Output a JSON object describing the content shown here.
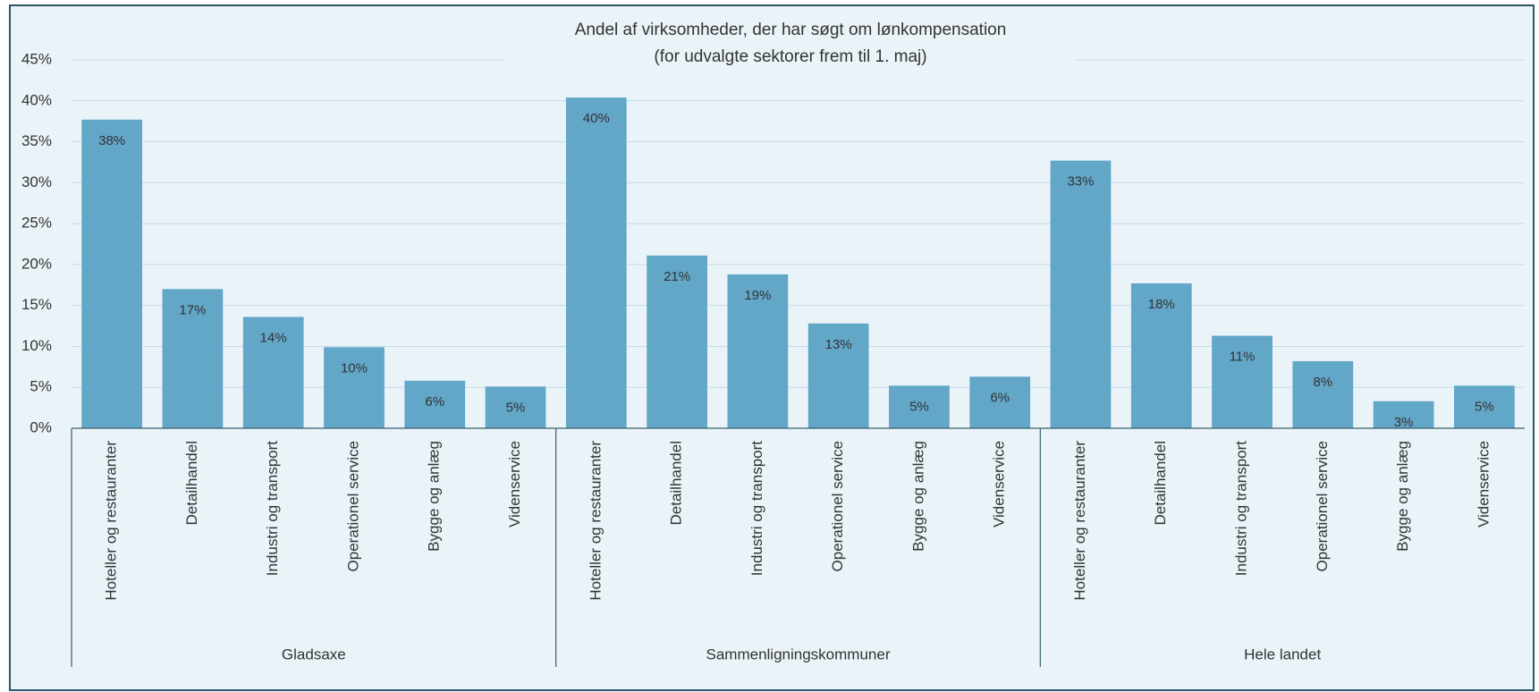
{
  "chart_data": {
    "type": "bar",
    "title": "Andel af virksomheder, der har søgt om lønkompensation",
    "subtitle": "(for udvalgte sektorer frem til 1. maj)",
    "color": "#62a6c8",
    "grid": true,
    "ylim": [
      0,
      45
    ],
    "yticks": [
      {
        "value": 0,
        "label": "0%"
      },
      {
        "value": 5,
        "label": "5%"
      },
      {
        "value": 10,
        "label": "10%"
      },
      {
        "value": 15,
        "label": "15%"
      },
      {
        "value": 20,
        "label": "20%"
      },
      {
        "value": 25,
        "label": "25%"
      },
      {
        "value": 30,
        "label": "30%"
      },
      {
        "value": 35,
        "label": "35%"
      },
      {
        "value": 40,
        "label": "40%"
      },
      {
        "value": 45,
        "label": "45%"
      }
    ],
    "groups": [
      {
        "name": "Gladsaxe",
        "categories": [
          "Hoteller og restauranter",
          "Detailhandel",
          "Industri og transport",
          "Operationel service",
          "Bygge og anlæg",
          "Videnservice"
        ],
        "values": [
          37.7,
          17.0,
          13.6,
          9.9,
          5.8,
          5.1
        ],
        "value_labels": [
          "38%",
          "17%",
          "14%",
          "10%",
          "6%",
          "5%"
        ]
      },
      {
        "name": "Sammenligningskommuner",
        "categories": [
          "Hoteller og restauranter",
          "Detailhandel",
          "Industri og transport",
          "Operationel service",
          "Bygge og anlæg",
          "Videnservice"
        ],
        "values": [
          40.4,
          21.1,
          18.8,
          12.8,
          5.2,
          6.3
        ],
        "value_labels": [
          "40%",
          "21%",
          "19%",
          "13%",
          "5%",
          "6%"
        ]
      },
      {
        "name": "Hele landet",
        "categories": [
          "Hoteller og restauranter",
          "Detailhandel",
          "Industri og transport",
          "Operationel service",
          "Bygge og anlæg",
          "Videnservice"
        ],
        "values": [
          32.7,
          17.7,
          11.3,
          8.2,
          3.3,
          5.2
        ],
        "value_labels": [
          "33%",
          "18%",
          "11%",
          "8%",
          "3%",
          "5%"
        ]
      }
    ]
  }
}
